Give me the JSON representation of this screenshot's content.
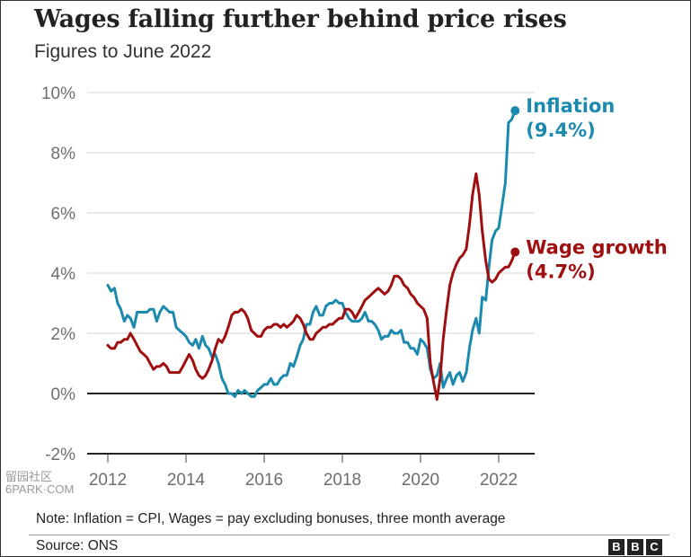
{
  "header": {
    "title": "Wages falling further behind price rises",
    "subtitle": "Figures to June 2022"
  },
  "footer": {
    "note": "Note: Inflation = CPI, Wages = pay excluding bonuses, three month average",
    "source": "Source: ONS",
    "logo": [
      "B",
      "B",
      "C"
    ]
  },
  "watermark": {
    "line1": "留园社区",
    "line2": "6PARK·COM"
  },
  "chart_data": {
    "type": "line",
    "title": "Wages falling further behind price rises",
    "subtitle": "Figures to June 2022",
    "xlabel": "",
    "ylabel": "",
    "xlim": [
      2011.9,
      2022.9
    ],
    "ylim": [
      -2,
      10
    ],
    "x_ticks": [
      2012,
      2014,
      2016,
      2018,
      2020,
      2022
    ],
    "x_tick_labels": [
      "2012",
      "2014",
      "2016",
      "2018",
      "2020",
      "2022"
    ],
    "y_ticks": [
      -2,
      0,
      2,
      4,
      6,
      8,
      10
    ],
    "y_tick_labels": [
      "-2%",
      "0%",
      "2%",
      "4%",
      "6%",
      "8%",
      "10%"
    ],
    "grid": true,
    "series": [
      {
        "name": "Inflation",
        "label": "Inflation",
        "end_label": "(9.4%)",
        "color": "#1b8aae",
        "end_value": 9.4,
        "points": [
          [
            2012.0,
            3.6
          ],
          [
            2012.08,
            3.4
          ],
          [
            2012.17,
            3.5
          ],
          [
            2012.25,
            3.0
          ],
          [
            2012.33,
            2.8
          ],
          [
            2012.42,
            2.4
          ],
          [
            2012.5,
            2.6
          ],
          [
            2012.58,
            2.5
          ],
          [
            2012.67,
            2.2
          ],
          [
            2012.75,
            2.7
          ],
          [
            2012.83,
            2.7
          ],
          [
            2012.92,
            2.7
          ],
          [
            2013.0,
            2.7
          ],
          [
            2013.08,
            2.8
          ],
          [
            2013.17,
            2.8
          ],
          [
            2013.25,
            2.4
          ],
          [
            2013.33,
            2.7
          ],
          [
            2013.42,
            2.9
          ],
          [
            2013.5,
            2.8
          ],
          [
            2013.58,
            2.7
          ],
          [
            2013.67,
            2.7
          ],
          [
            2013.75,
            2.2
          ],
          [
            2013.83,
            2.1
          ],
          [
            2013.92,
            2.0
          ],
          [
            2014.0,
            1.9
          ],
          [
            2014.08,
            1.7
          ],
          [
            2014.17,
            1.6
          ],
          [
            2014.25,
            1.8
          ],
          [
            2014.33,
            1.5
          ],
          [
            2014.42,
            1.9
          ],
          [
            2014.5,
            1.6
          ],
          [
            2014.58,
            1.5
          ],
          [
            2014.67,
            1.2
          ],
          [
            2014.75,
            1.3
          ],
          [
            2014.83,
            1.0
          ],
          [
            2014.92,
            0.5
          ],
          [
            2015.0,
            0.3
          ],
          [
            2015.08,
            0.0
          ],
          [
            2015.17,
            0.0
          ],
          [
            2015.25,
            -0.1
          ],
          [
            2015.33,
            0.1
          ],
          [
            2015.42,
            0.0
          ],
          [
            2015.5,
            0.1
          ],
          [
            2015.58,
            0.0
          ],
          [
            2015.67,
            -0.1
          ],
          [
            2015.75,
            -0.1
          ],
          [
            2015.83,
            0.1
          ],
          [
            2015.92,
            0.2
          ],
          [
            2016.0,
            0.3
          ],
          [
            2016.08,
            0.3
          ],
          [
            2016.17,
            0.5
          ],
          [
            2016.25,
            0.3
          ],
          [
            2016.33,
            0.3
          ],
          [
            2016.42,
            0.5
          ],
          [
            2016.5,
            0.6
          ],
          [
            2016.58,
            0.6
          ],
          [
            2016.67,
            1.0
          ],
          [
            2016.75,
            0.9
          ],
          [
            2016.83,
            1.2
          ],
          [
            2016.92,
            1.6
          ],
          [
            2017.0,
            1.8
          ],
          [
            2017.08,
            2.3
          ],
          [
            2017.17,
            2.3
          ],
          [
            2017.25,
            2.7
          ],
          [
            2017.33,
            2.9
          ],
          [
            2017.42,
            2.6
          ],
          [
            2017.5,
            2.6
          ],
          [
            2017.58,
            2.9
          ],
          [
            2017.67,
            3.0
          ],
          [
            2017.75,
            3.0
          ],
          [
            2017.83,
            3.1
          ],
          [
            2017.92,
            3.0
          ],
          [
            2018.0,
            3.0
          ],
          [
            2018.08,
            2.7
          ],
          [
            2018.17,
            2.5
          ],
          [
            2018.25,
            2.4
          ],
          [
            2018.33,
            2.4
          ],
          [
            2018.42,
            2.4
          ],
          [
            2018.5,
            2.5
          ],
          [
            2018.58,
            2.7
          ],
          [
            2018.67,
            2.4
          ],
          [
            2018.75,
            2.4
          ],
          [
            2018.83,
            2.3
          ],
          [
            2018.92,
            2.1
          ],
          [
            2019.0,
            1.8
          ],
          [
            2019.08,
            1.9
          ],
          [
            2019.17,
            1.9
          ],
          [
            2019.25,
            2.1
          ],
          [
            2019.33,
            2.0
          ],
          [
            2019.42,
            2.0
          ],
          [
            2019.5,
            2.1
          ],
          [
            2019.58,
            1.7
          ],
          [
            2019.67,
            1.7
          ],
          [
            2019.75,
            1.5
          ],
          [
            2019.83,
            1.5
          ],
          [
            2019.92,
            1.3
          ],
          [
            2020.0,
            1.8
          ],
          [
            2020.08,
            1.7
          ],
          [
            2020.17,
            1.5
          ],
          [
            2020.25,
            0.8
          ],
          [
            2020.33,
            0.5
          ],
          [
            2020.42,
            0.6
          ],
          [
            2020.5,
            1.0
          ],
          [
            2020.58,
            0.2
          ],
          [
            2020.67,
            0.5
          ],
          [
            2020.75,
            0.7
          ],
          [
            2020.83,
            0.3
          ],
          [
            2020.92,
            0.6
          ],
          [
            2021.0,
            0.7
          ],
          [
            2021.08,
            0.4
          ],
          [
            2021.17,
            0.7
          ],
          [
            2021.25,
            1.5
          ],
          [
            2021.33,
            2.1
          ],
          [
            2021.42,
            2.5
          ],
          [
            2021.5,
            2.0
          ],
          [
            2021.58,
            3.2
          ],
          [
            2021.67,
            3.1
          ],
          [
            2021.75,
            4.2
          ],
          [
            2021.83,
            5.1
          ],
          [
            2021.92,
            5.4
          ],
          [
            2022.0,
            5.5
          ],
          [
            2022.08,
            6.2
          ],
          [
            2022.17,
            7.0
          ],
          [
            2022.25,
            9.0
          ],
          [
            2022.33,
            9.1
          ],
          [
            2022.42,
            9.4
          ]
        ]
      },
      {
        "name": "Wage growth",
        "label": "Wage growth",
        "end_label": "(4.7%)",
        "color": "#a00f0f",
        "end_value": 4.7,
        "points": [
          [
            2012.0,
            1.6
          ],
          [
            2012.08,
            1.5
          ],
          [
            2012.17,
            1.5
          ],
          [
            2012.25,
            1.7
          ],
          [
            2012.33,
            1.7
          ],
          [
            2012.42,
            1.8
          ],
          [
            2012.5,
            1.8
          ],
          [
            2012.58,
            2.0
          ],
          [
            2012.67,
            1.8
          ],
          [
            2012.75,
            1.6
          ],
          [
            2012.83,
            1.4
          ],
          [
            2012.92,
            1.3
          ],
          [
            2013.0,
            1.2
          ],
          [
            2013.08,
            1.0
          ],
          [
            2013.17,
            0.8
          ],
          [
            2013.25,
            0.9
          ],
          [
            2013.33,
            0.9
          ],
          [
            2013.42,
            1.0
          ],
          [
            2013.5,
            0.9
          ],
          [
            2013.58,
            0.7
          ],
          [
            2013.67,
            0.7
          ],
          [
            2013.75,
            0.7
          ],
          [
            2013.83,
            0.7
          ],
          [
            2013.92,
            0.9
          ],
          [
            2014.0,
            1.1
          ],
          [
            2014.08,
            1.3
          ],
          [
            2014.17,
            1.1
          ],
          [
            2014.25,
            0.8
          ],
          [
            2014.33,
            0.6
          ],
          [
            2014.42,
            0.5
          ],
          [
            2014.5,
            0.6
          ],
          [
            2014.58,
            0.8
          ],
          [
            2014.67,
            1.1
          ],
          [
            2014.75,
            1.5
          ],
          [
            2014.83,
            1.8
          ],
          [
            2014.92,
            1.7
          ],
          [
            2015.0,
            1.9
          ],
          [
            2015.08,
            2.2
          ],
          [
            2015.17,
            2.6
          ],
          [
            2015.25,
            2.7
          ],
          [
            2015.33,
            2.7
          ],
          [
            2015.42,
            2.8
          ],
          [
            2015.5,
            2.7
          ],
          [
            2015.58,
            2.5
          ],
          [
            2015.67,
            2.1
          ],
          [
            2015.75,
            2.0
          ],
          [
            2015.83,
            1.9
          ],
          [
            2015.92,
            1.9
          ],
          [
            2016.0,
            2.1
          ],
          [
            2016.08,
            2.2
          ],
          [
            2016.17,
            2.2
          ],
          [
            2016.25,
            2.3
          ],
          [
            2016.33,
            2.3
          ],
          [
            2016.42,
            2.2
          ],
          [
            2016.5,
            2.3
          ],
          [
            2016.58,
            2.2
          ],
          [
            2016.67,
            2.3
          ],
          [
            2016.75,
            2.4
          ],
          [
            2016.83,
            2.6
          ],
          [
            2016.92,
            2.5
          ],
          [
            2017.0,
            2.3
          ],
          [
            2017.08,
            2.0
          ],
          [
            2017.17,
            1.8
          ],
          [
            2017.25,
            1.8
          ],
          [
            2017.33,
            2.0
          ],
          [
            2017.42,
            2.1
          ],
          [
            2017.5,
            2.2
          ],
          [
            2017.58,
            2.2
          ],
          [
            2017.67,
            2.3
          ],
          [
            2017.75,
            2.3
          ],
          [
            2017.83,
            2.4
          ],
          [
            2017.92,
            2.5
          ],
          [
            2018.0,
            2.5
          ],
          [
            2018.08,
            2.8
          ],
          [
            2018.17,
            2.8
          ],
          [
            2018.25,
            2.7
          ],
          [
            2018.33,
            2.5
          ],
          [
            2018.42,
            2.7
          ],
          [
            2018.5,
            2.9
          ],
          [
            2018.58,
            3.1
          ],
          [
            2018.67,
            3.2
          ],
          [
            2018.75,
            3.3
          ],
          [
            2018.83,
            3.4
          ],
          [
            2018.92,
            3.5
          ],
          [
            2019.0,
            3.4
          ],
          [
            2019.08,
            3.3
          ],
          [
            2019.17,
            3.4
          ],
          [
            2019.25,
            3.6
          ],
          [
            2019.33,
            3.9
          ],
          [
            2019.42,
            3.9
          ],
          [
            2019.5,
            3.8
          ],
          [
            2019.58,
            3.6
          ],
          [
            2019.67,
            3.5
          ],
          [
            2019.75,
            3.3
          ],
          [
            2019.83,
            3.2
          ],
          [
            2019.92,
            3.0
          ],
          [
            2020.0,
            2.9
          ],
          [
            2020.08,
            2.8
          ],
          [
            2020.17,
            2.5
          ],
          [
            2020.25,
            1.0
          ],
          [
            2020.33,
            0.4
          ],
          [
            2020.42,
            -0.2
          ],
          [
            2020.5,
            0.5
          ],
          [
            2020.58,
            1.8
          ],
          [
            2020.67,
            2.8
          ],
          [
            2020.75,
            3.6
          ],
          [
            2020.83,
            4.0
          ],
          [
            2020.92,
            4.3
          ],
          [
            2021.0,
            4.5
          ],
          [
            2021.08,
            4.6
          ],
          [
            2021.17,
            4.8
          ],
          [
            2021.25,
            5.6
          ],
          [
            2021.33,
            6.6
          ],
          [
            2021.42,
            7.3
          ],
          [
            2021.5,
            6.6
          ],
          [
            2021.58,
            5.4
          ],
          [
            2021.67,
            4.4
          ],
          [
            2021.75,
            3.8
          ],
          [
            2021.83,
            3.7
          ],
          [
            2021.92,
            3.8
          ],
          [
            2022.0,
            4.0
          ],
          [
            2022.08,
            4.1
          ],
          [
            2022.17,
            4.2
          ],
          [
            2022.25,
            4.2
          ],
          [
            2022.33,
            4.4
          ],
          [
            2022.42,
            4.7
          ]
        ]
      }
    ]
  }
}
